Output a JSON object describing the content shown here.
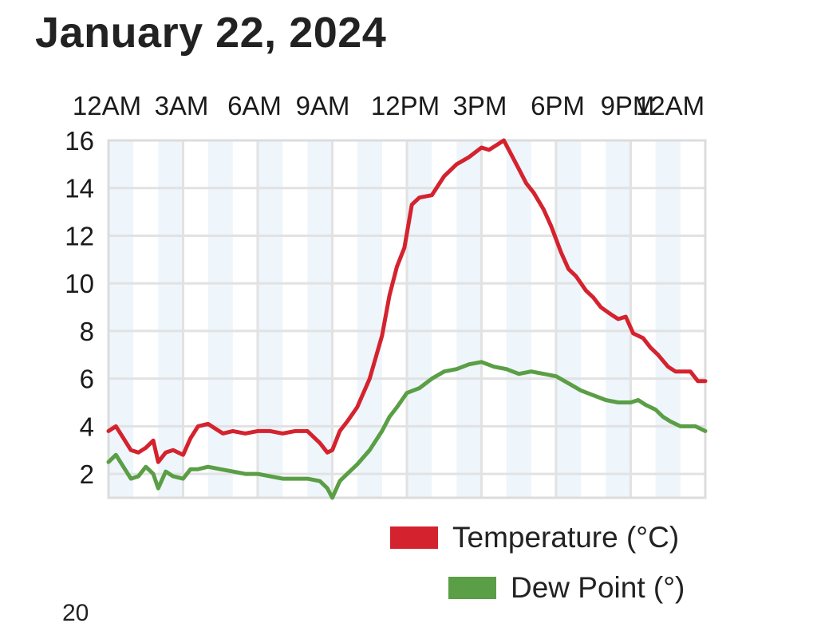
{
  "chart_data": {
    "type": "line",
    "title": "January 22, 2024",
    "x_tick_labels": [
      "12AM",
      "3AM",
      "6AM",
      "9AM",
      "12PM",
      "3PM",
      "6PM",
      "9PM",
      "12AM"
    ],
    "x_range_hours": [
      0,
      24
    ],
    "ylim": [
      1,
      16
    ],
    "y_ticks": [
      2,
      4,
      6,
      8,
      10,
      12,
      14,
      16
    ],
    "grid": true,
    "legend_position": "bottom-right",
    "series": [
      {
        "name": "Temperature (°C)",
        "color": "#d4232e",
        "x": [
          0,
          0.3,
          0.6,
          0.9,
          1.2,
          1.5,
          1.8,
          2.0,
          2.3,
          2.6,
          3.0,
          3.3,
          3.6,
          4.0,
          4.3,
          4.6,
          5.0,
          5.5,
          6.0,
          6.5,
          7.0,
          7.5,
          8.0,
          8.5,
          8.8,
          9.0,
          9.3,
          9.6,
          10.0,
          10.5,
          11.0,
          11.3,
          11.6,
          11.9,
          12.2,
          12.5,
          13.0,
          13.5,
          14.0,
          14.5,
          15.0,
          15.3,
          15.6,
          15.9,
          16.2,
          16.5,
          16.8,
          17.1,
          17.5,
          17.8,
          18.2,
          18.5,
          18.8,
          19.2,
          19.5,
          19.8,
          20.2,
          20.5,
          20.8,
          21.1,
          21.5,
          21.8,
          22.1,
          22.5,
          22.8,
          23.1,
          23.4,
          23.7,
          24.0
        ],
        "values": [
          3.8,
          4.0,
          3.5,
          3.0,
          2.9,
          3.1,
          3.4,
          2.5,
          2.9,
          3.0,
          2.8,
          3.5,
          4.0,
          4.1,
          3.9,
          3.7,
          3.8,
          3.7,
          3.8,
          3.8,
          3.7,
          3.8,
          3.8,
          3.3,
          2.9,
          3.0,
          3.8,
          4.2,
          4.8,
          6.0,
          7.8,
          9.5,
          10.7,
          11.5,
          13.3,
          13.6,
          13.7,
          14.5,
          15.0,
          15.3,
          15.7,
          15.6,
          15.8,
          16.0,
          15.4,
          14.8,
          14.2,
          13.8,
          13.1,
          12.4,
          11.3,
          10.6,
          10.3,
          9.7,
          9.4,
          9.0,
          8.7,
          8.5,
          8.6,
          7.9,
          7.7,
          7.3,
          7.0,
          6.5,
          6.3,
          6.3,
          6.3,
          5.9,
          5.9
        ],
        "label_position": "legend"
      },
      {
        "name": "Dew Point (°)",
        "color": "#5a9e45",
        "x": [
          0,
          0.3,
          0.6,
          0.9,
          1.2,
          1.5,
          1.8,
          2.0,
          2.3,
          2.6,
          3.0,
          3.3,
          3.6,
          4.0,
          4.5,
          5.0,
          5.5,
          6.0,
          6.5,
          7.0,
          7.5,
          8.0,
          8.5,
          8.8,
          9.0,
          9.3,
          9.6,
          10.0,
          10.5,
          11.0,
          11.3,
          11.6,
          12.0,
          12.5,
          13.0,
          13.5,
          14.0,
          14.5,
          15.0,
          15.5,
          16.0,
          16.5,
          17.0,
          17.5,
          18.0,
          18.5,
          19.0,
          19.5,
          20.0,
          20.5,
          21.0,
          21.3,
          21.6,
          22.0,
          22.3,
          22.6,
          23.0,
          23.3,
          23.6,
          23.8,
          24.0
        ],
        "values": [
          2.5,
          2.8,
          2.3,
          1.8,
          1.9,
          2.3,
          2.0,
          1.4,
          2.1,
          1.9,
          1.8,
          2.2,
          2.2,
          2.3,
          2.2,
          2.1,
          2.0,
          2.0,
          1.9,
          1.8,
          1.8,
          1.8,
          1.7,
          1.4,
          1.0,
          1.7,
          2.0,
          2.4,
          3.0,
          3.8,
          4.4,
          4.8,
          5.4,
          5.6,
          6.0,
          6.3,
          6.4,
          6.6,
          6.7,
          6.5,
          6.4,
          6.2,
          6.3,
          6.2,
          6.1,
          5.8,
          5.5,
          5.3,
          5.1,
          5.0,
          5.0,
          5.1,
          4.9,
          4.7,
          4.4,
          4.2,
          4.0,
          4.0,
          4.0,
          3.9,
          3.8
        ]
      }
    ]
  },
  "page": {
    "stray_text": "20"
  },
  "legend": {
    "temperature_label": "Temperature (°C)",
    "temperature_color": "#d4232e",
    "dew_label": "Dew Point (°)",
    "dew_color": "#5a9e45"
  }
}
